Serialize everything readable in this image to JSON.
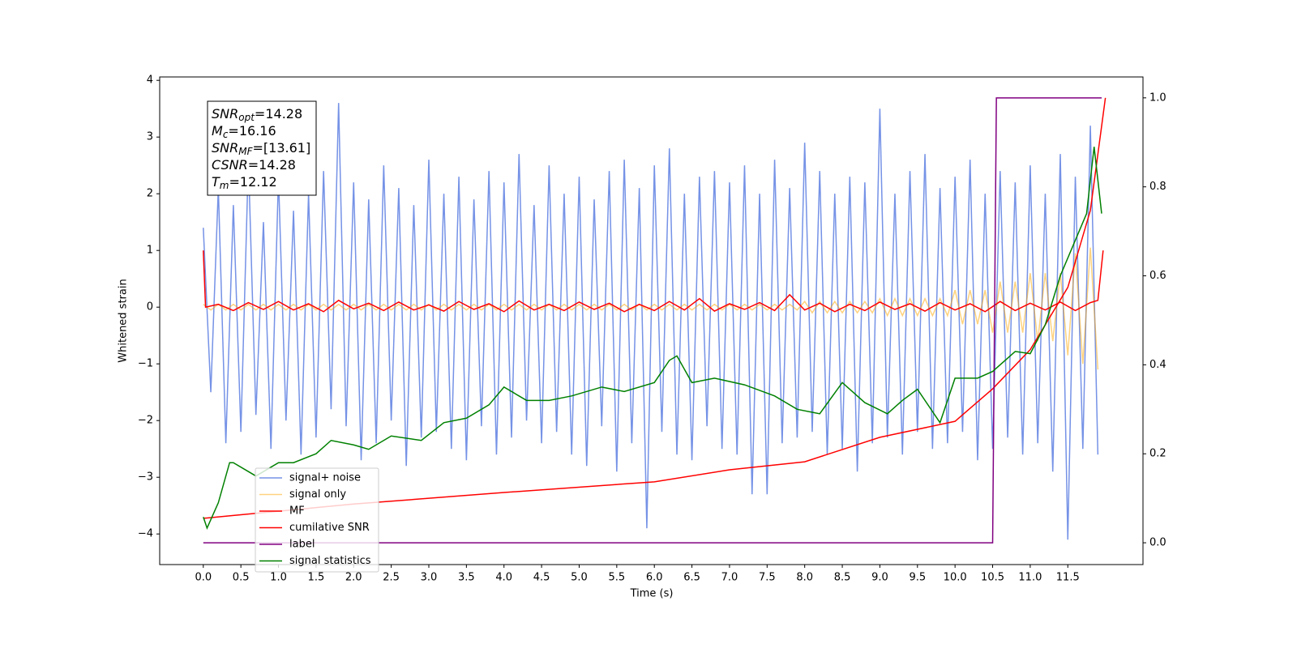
{
  "chart_data": {
    "type": "line",
    "xlabel": "Time (s)",
    "ylabel": "Whitened strain",
    "xlim": [
      -0.58,
      12.5
    ],
    "ylim": [
      -4.54,
      4.06
    ],
    "y2lim": [
      -0.049,
      1.047
    ],
    "xticks": [
      {
        "value": 0,
        "label": "0.0"
      },
      0.5,
      {
        "value": 1,
        "label": "1.0"
      },
      1.5,
      {
        "value": 2,
        "label": "2.0"
      },
      2.5,
      {
        "value": 3,
        "label": "3.0"
      },
      3.5,
      {
        "value": 4,
        "label": "4.0"
      },
      4.5,
      {
        "value": 5,
        "label": "5.0"
      },
      5.5,
      {
        "value": 6,
        "label": "6.0"
      },
      6.5,
      {
        "value": 7,
        "label": "7.0"
      },
      7.5,
      {
        "value": 8,
        "label": "8.0"
      },
      8.5,
      {
        "value": 9,
        "label": "9.0"
      },
      9.5,
      {
        "value": 10,
        "label": "10.0"
      },
      10.5,
      {
        "value": 11,
        "label": "11.0"
      },
      11.5
    ],
    "yticks": [
      {
        "value": -4,
        "label": "−4"
      },
      {
        "value": -3,
        "label": "−3"
      },
      {
        "value": -2,
        "label": "−2"
      },
      {
        "value": -1,
        "label": "−1"
      },
      0,
      1,
      2,
      3,
      4
    ],
    "y2ticks": [
      {
        "value": 0,
        "label": "0.0"
      },
      0.2,
      0.4,
      0.6,
      0.8,
      {
        "value": 1,
        "label": "1.0"
      }
    ],
    "legend": "lower left",
    "annotations": [
      {
        "symbol": "SNR",
        "subscript": "opt",
        "text": "=14.28"
      },
      {
        "symbol": "M",
        "subscript": "c",
        "text": "=16.16"
      },
      {
        "symbol": "SNR",
        "subscript": "MF",
        "text": "=[13.61]"
      },
      {
        "symbol": "CSNR",
        "text": "=14.28"
      },
      {
        "symbol": "T",
        "subscript": "m",
        "text": "=12.12"
      }
    ],
    "x": [
      0.0,
      0.1,
      0.2,
      0.3,
      0.4,
      0.5,
      0.6,
      0.7,
      0.8,
      0.9,
      1.0,
      1.1,
      1.2,
      1.3,
      1.4,
      1.5,
      1.6,
      1.7,
      1.8,
      1.9,
      2.0,
      2.1,
      2.2,
      2.3,
      2.4,
      2.5,
      2.6,
      2.7,
      2.8,
      2.9,
      3.0,
      3.1,
      3.2,
      3.3,
      3.4,
      3.5,
      3.6,
      3.7,
      3.8,
      3.9,
      4.0,
      4.1,
      4.2,
      4.3,
      4.4,
      4.5,
      4.6,
      4.7,
      4.8,
      4.9,
      5.0,
      5.1,
      5.2,
      5.3,
      5.4,
      5.5,
      5.6,
      5.7,
      5.8,
      5.9,
      6.0,
      6.1,
      6.2,
      6.3,
      6.4,
      6.5,
      6.6,
      6.7,
      6.8,
      6.9,
      7.0,
      7.1,
      7.2,
      7.3,
      7.4,
      7.5,
      7.6,
      7.7,
      7.8,
      7.9,
      8.0,
      8.1,
      8.2,
      8.3,
      8.4,
      8.5,
      8.6,
      8.7,
      8.8,
      8.9,
      9.0,
      9.1,
      9.2,
      9.3,
      9.4,
      9.5,
      9.6,
      9.7,
      9.8,
      9.9,
      10.0,
      10.1,
      10.2,
      10.3,
      10.4,
      10.5,
      10.6,
      10.7,
      10.8,
      10.9,
      11.0,
      11.1,
      11.2,
      11.3,
      11.4,
      11.5,
      11.6,
      11.7,
      11.8,
      11.9
    ],
    "series": [
      {
        "name": "signal+ noise",
        "color": "#7592e6",
        "values": [
          1.4,
          -1.5,
          2.1,
          -2.4,
          1.8,
          -2.2,
          2.6,
          -1.9,
          1.5,
          -2.5,
          2.3,
          -2.0,
          1.7,
          -2.6,
          2.0,
          -2.3,
          2.4,
          -1.8,
          3.6,
          -2.1,
          2.2,
          -2.7,
          1.9,
          -2.4,
          2.5,
          -2.0,
          2.1,
          -2.8,
          1.8,
          -2.3,
          2.6,
          -2.2,
          2.0,
          -2.5,
          2.3,
          -2.7,
          1.9,
          -2.1,
          2.4,
          -2.6,
          2.2,
          -2.3,
          2.7,
          -2.0,
          1.8,
          -2.4,
          2.5,
          -2.2,
          2.0,
          -2.6,
          2.3,
          -2.8,
          1.9,
          -2.1,
          2.4,
          -2.9,
          2.6,
          -2.4,
          2.1,
          -3.9,
          2.5,
          -2.2,
          2.8,
          -2.6,
          2.0,
          -2.7,
          2.3,
          -2.1,
          2.4,
          -2.5,
          2.2,
          -2.6,
          2.5,
          -3.3,
          2.0,
          -3.3,
          2.6,
          -2.4,
          2.1,
          -2.3,
          2.9,
          -2.2,
          2.4,
          -2.6,
          2.0,
          -2.5,
          2.3,
          -2.9,
          2.2,
          -2.4,
          3.5,
          -2.3,
          2.0,
          -2.6,
          2.4,
          -2.2,
          2.7,
          -2.5,
          2.1,
          -2.4,
          2.3,
          -2.2,
          2.6,
          -2.7,
          2.0,
          -2.5,
          2.4,
          -2.3,
          2.2,
          -2.6,
          2.5,
          -2.4,
          2.0,
          -2.9,
          2.7,
          -4.1,
          2.3,
          -2.5,
          3.2,
          -2.6
        ]
      },
      {
        "name": "signal only",
        "color": "#ffa500",
        "alpha": 0.5,
        "values": [
          0.05,
          -0.05,
          0.05,
          -0.05,
          0.05,
          -0.05,
          0.05,
          -0.05,
          0.05,
          -0.05,
          0.05,
          -0.05,
          0.05,
          -0.05,
          0.05,
          -0.05,
          0.05,
          -0.05,
          0.05,
          -0.05,
          0.05,
          -0.05,
          0.05,
          -0.05,
          0.05,
          -0.05,
          0.05,
          -0.05,
          0.05,
          -0.05,
          0.05,
          -0.05,
          0.05,
          -0.05,
          0.05,
          -0.05,
          0.05,
          -0.05,
          0.05,
          -0.05,
          0.05,
          -0.05,
          0.05,
          -0.05,
          0.05,
          -0.05,
          0.05,
          -0.05,
          0.05,
          -0.05,
          0.05,
          -0.05,
          0.05,
          -0.05,
          0.05,
          -0.05,
          0.05,
          -0.05,
          0.05,
          -0.05,
          0.05,
          -0.05,
          0.05,
          -0.05,
          0.05,
          -0.05,
          0.05,
          -0.05,
          0.05,
          -0.05,
          0.05,
          -0.05,
          0.05,
          -0.05,
          0.05,
          -0.05,
          0.05,
          -0.05,
          0.05,
          -0.05,
          0.1,
          -0.1,
          0.1,
          -0.1,
          0.1,
          -0.1,
          0.1,
          -0.1,
          0.1,
          -0.1,
          0.15,
          -0.15,
          0.15,
          -0.15,
          0.15,
          -0.15,
          0.15,
          -0.15,
          0.15,
          -0.15,
          0.3,
          -0.3,
          0.3,
          -0.3,
          0.3,
          -0.45,
          0.45,
          -0.45,
          0.45,
          -0.45,
          0.6,
          -0.6,
          0.6,
          -0.6,
          0.6,
          -0.85,
          0.95,
          -1.0,
          1.05,
          -1.1
        ]
      },
      {
        "name": "MF",
        "color": "#ff0000",
        "x": [
          0,
          0.03,
          0.2,
          0.4,
          0.6,
          0.8,
          1.0,
          1.2,
          1.4,
          1.6,
          1.8,
          2.0,
          2.2,
          2.4,
          2.6,
          2.8,
          3.0,
          3.2,
          3.4,
          3.6,
          3.8,
          4.0,
          4.2,
          4.4,
          4.6,
          4.8,
          5.0,
          5.2,
          5.4,
          5.6,
          5.8,
          6.0,
          6.2,
          6.4,
          6.6,
          6.8,
          7.0,
          7.2,
          7.4,
          7.6,
          7.8,
          8.0,
          8.2,
          8.4,
          8.6,
          8.8,
          9.0,
          9.2,
          9.4,
          9.6,
          9.8,
          10.0,
          10.2,
          10.4,
          10.6,
          10.8,
          11.0,
          11.2,
          11.4,
          11.6,
          11.8,
          11.9,
          11.97
        ],
        "values": [
          1.0,
          0.0,
          0.05,
          -0.06,
          0.08,
          -0.04,
          0.1,
          -0.05,
          0.06,
          -0.08,
          0.12,
          -0.03,
          0.07,
          -0.06,
          0.09,
          -0.05,
          0.04,
          -0.07,
          0.1,
          -0.04,
          0.06,
          -0.08,
          0.11,
          -0.05,
          0.05,
          -0.06,
          0.09,
          -0.04,
          0.07,
          -0.08,
          0.05,
          -0.06,
          0.1,
          -0.05,
          0.15,
          -0.07,
          0.06,
          -0.04,
          0.08,
          -0.06,
          0.22,
          -0.05,
          0.07,
          -0.08,
          0.05,
          -0.06,
          0.09,
          -0.04,
          0.06,
          -0.07,
          0.08,
          -0.05,
          0.06,
          -0.08,
          0.1,
          -0.06,
          0.07,
          -0.05,
          0.09,
          -0.06,
          0.08,
          0.12,
          1.0
        ]
      },
      {
        "name": "cumilative SNR",
        "color": "#ff0000",
        "axis": "y2",
        "x": [
          0,
          2,
          4,
          6,
          7,
          8,
          9,
          10,
          10.5,
          11,
          11.5,
          11.8,
          12
        ],
        "values": [
          0.055,
          0.087,
          0.113,
          0.137,
          0.164,
          0.182,
          0.237,
          0.273,
          0.346,
          0.434,
          0.574,
          0.747,
          1.0
        ]
      },
      {
        "name": "label",
        "color": "#800080",
        "axis": "y2",
        "x": [
          0,
          10.5,
          10.55,
          11.95
        ],
        "values": [
          0,
          0,
          1,
          1
        ]
      },
      {
        "name": "signal statistics",
        "color": "#008000",
        "axis": "y2",
        "x": [
          0,
          0.05,
          0.2,
          0.35,
          0.4,
          0.6,
          0.7,
          1.0,
          1.2,
          1.5,
          1.7,
          2.0,
          2.2,
          2.5,
          2.9,
          3.2,
          3.5,
          3.8,
          4.0,
          4.3,
          4.6,
          4.9,
          5.3,
          5.6,
          6.0,
          6.2,
          6.3,
          6.5,
          6.8,
          7.2,
          7.6,
          7.9,
          8.2,
          8.5,
          8.8,
          9.1,
          9.3,
          9.5,
          9.8,
          10.0,
          10.3,
          10.5,
          10.8,
          11.0,
          11.2,
          11.4,
          11.6,
          11.75,
          11.85,
          11.95
        ],
        "values": [
          0.058,
          0.033,
          0.09,
          0.18,
          0.18,
          0.16,
          0.15,
          0.18,
          0.18,
          0.2,
          0.23,
          0.22,
          0.21,
          0.24,
          0.23,
          0.27,
          0.28,
          0.31,
          0.35,
          0.32,
          0.32,
          0.33,
          0.35,
          0.34,
          0.36,
          0.41,
          0.42,
          0.36,
          0.37,
          0.355,
          0.33,
          0.3,
          0.29,
          0.36,
          0.315,
          0.29,
          0.32,
          0.345,
          0.27,
          0.37,
          0.37,
          0.385,
          0.43,
          0.425,
          0.49,
          0.6,
          0.68,
          0.74,
          0.89,
          0.74
        ]
      }
    ]
  }
}
